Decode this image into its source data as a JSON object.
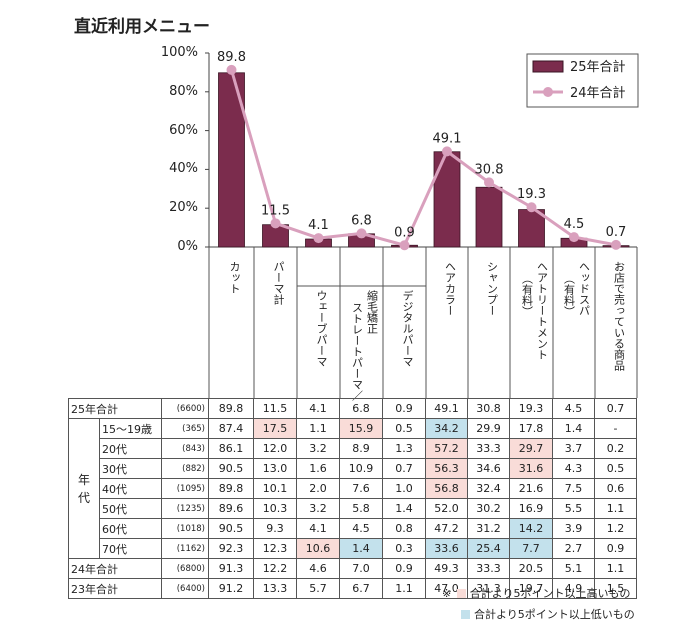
{
  "title": "直近利用メニュー",
  "chart_data": {
    "type": "bar",
    "categories": [
      "カット",
      "パーマ計",
      "ウェーブパーマ",
      "縮毛矯正 ストレートパーマ／",
      "デジタルパーマ",
      "ヘアカラー",
      "シャンプー",
      "ヘアトリートメント（有料）",
      "ヘッドスパ（有料）",
      "お店で売っている商品"
    ],
    "category_lines": [
      [
        "カット"
      ],
      [
        "パーマ計"
      ],
      [
        "ウェーブパーマ"
      ],
      [
        "縮毛矯正",
        "ストレートパーマ／"
      ],
      [
        "デジタルパーマ"
      ],
      [
        "ヘアカラー"
      ],
      [
        "シャンプー"
      ],
      [
        "ヘアトリートメント",
        "（有料）"
      ],
      [
        "ヘッドスパ",
        "（有料）"
      ],
      [
        "お店で売っている商品"
      ]
    ],
    "series": [
      {
        "name": "25年合計",
        "type": "bar",
        "color": "#7b2c4d",
        "values": [
          89.8,
          11.5,
          4.1,
          6.8,
          0.9,
          49.1,
          30.8,
          19.3,
          4.5,
          0.7
        ]
      },
      {
        "name": "24年合計",
        "type": "line",
        "color": "#d9a0bd",
        "values": [
          91.3,
          12.2,
          4.6,
          7.0,
          0.9,
          49.3,
          33.3,
          20.5,
          5.1,
          1.1
        ]
      }
    ],
    "data_labels": [
      "89.8",
      "11.5",
      "4.1",
      "6.8",
      "0.9",
      "49.1",
      "30.8",
      "19.3",
      "4.5",
      "0.7"
    ],
    "yticks": [
      "0%",
      "20%",
      "40%",
      "60%",
      "80%",
      "100%"
    ],
    "ylim": [
      0,
      100
    ],
    "legend_position": "top-right",
    "grid": false
  },
  "table": {
    "columns": [
      "カット",
      "パーマ計",
      "ウェーブパーマ",
      "縮毛矯正 ストレートパーマ／",
      "デジタルパーマ",
      "ヘアカラー",
      "シャンプー",
      "ヘアトリートメント（有料）",
      "ヘッドスパ（有料）",
      "お店で売っている商品"
    ],
    "group_label": "年代",
    "rows": [
      {
        "label": "25年合計",
        "n": "(6600)",
        "values": [
          "89.8",
          "11.5",
          "4.1",
          "6.8",
          "0.9",
          "49.1",
          "30.8",
          "19.3",
          "4.5",
          "0.7"
        ],
        "marks": [
          "",
          "",
          "",
          "",
          "",
          "",
          "",
          "",
          "",
          ""
        ]
      },
      {
        "label": "15～19歳",
        "n": "(365)",
        "values": [
          "87.4",
          "17.5",
          "1.1",
          "15.9",
          "0.5",
          "34.2",
          "29.9",
          "17.8",
          "1.4",
          "-"
        ],
        "marks": [
          "",
          "hi",
          "",
          "hi",
          "",
          "lo",
          "",
          "",
          "",
          ""
        ]
      },
      {
        "label": "20代",
        "n": "(843)",
        "values": [
          "86.1",
          "12.0",
          "3.2",
          "8.9",
          "1.3",
          "57.2",
          "33.3",
          "29.7",
          "3.7",
          "0.2"
        ],
        "marks": [
          "",
          "",
          "",
          "",
          "",
          "hi",
          "",
          "hi",
          "",
          ""
        ]
      },
      {
        "label": "30代",
        "n": "(882)",
        "values": [
          "90.5",
          "13.0",
          "1.6",
          "10.9",
          "0.7",
          "56.3",
          "34.6",
          "31.6",
          "4.3",
          "0.5"
        ],
        "marks": [
          "",
          "",
          "",
          "",
          "",
          "hi",
          "",
          "hi",
          "",
          ""
        ]
      },
      {
        "label": "40代",
        "n": "(1095)",
        "values": [
          "89.8",
          "10.1",
          "2.0",
          "7.6",
          "1.0",
          "56.8",
          "32.4",
          "21.6",
          "7.5",
          "0.6"
        ],
        "marks": [
          "",
          "",
          "",
          "",
          "",
          "hi",
          "",
          "",
          "",
          ""
        ]
      },
      {
        "label": "50代",
        "n": "(1235)",
        "values": [
          "89.6",
          "10.3",
          "3.2",
          "5.8",
          "1.4",
          "52.0",
          "30.2",
          "16.9",
          "5.5",
          "1.1"
        ],
        "marks": [
          "",
          "",
          "",
          "",
          "",
          "",
          "",
          "",
          "",
          ""
        ]
      },
      {
        "label": "60代",
        "n": "(1018)",
        "values": [
          "90.5",
          "9.3",
          "4.1",
          "4.5",
          "0.8",
          "47.2",
          "31.2",
          "14.2",
          "3.9",
          "1.2"
        ],
        "marks": [
          "",
          "",
          "",
          "",
          "",
          "",
          "",
          "lo",
          "",
          ""
        ]
      },
      {
        "label": "70代",
        "n": "(1162)",
        "values": [
          "92.3",
          "12.3",
          "10.6",
          "1.4",
          "0.3",
          "33.6",
          "25.4",
          "7.7",
          "2.7",
          "0.9"
        ],
        "marks": [
          "",
          "",
          "hi",
          "lo",
          "",
          "lo",
          "lo",
          "lo",
          "",
          ""
        ]
      },
      {
        "label": "24年合計",
        "n": "(6800)",
        "values": [
          "91.3",
          "12.2",
          "4.6",
          "7.0",
          "0.9",
          "49.3",
          "33.3",
          "20.5",
          "5.1",
          "1.1"
        ],
        "marks": [
          "",
          "",
          "",
          "",
          "",
          "",
          "",
          "",
          "",
          ""
        ]
      },
      {
        "label": "23年合計",
        "n": "(6400)",
        "values": [
          "91.2",
          "13.3",
          "5.7",
          "6.7",
          "1.1",
          "47.0",
          "31.3",
          "19.7",
          "4.9",
          "1.5"
        ],
        "marks": [
          "",
          "",
          "",
          "",
          "",
          "",
          "",
          "",
          "",
          ""
        ]
      }
    ]
  },
  "notes": {
    "prefix": "※",
    "high": "合計より5ポイント以上高いもの",
    "low": "合計より5ポイント以上低いもの",
    "high_color": "#f9dcd8",
    "low_color": "#c3e1ec"
  }
}
